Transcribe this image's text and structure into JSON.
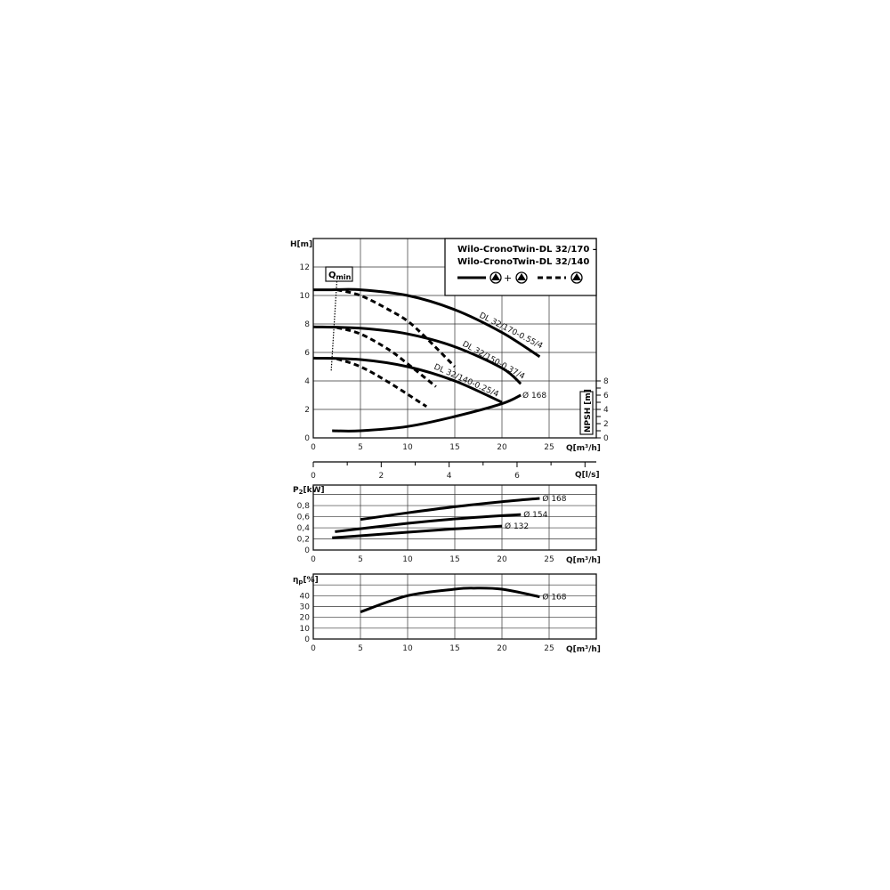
{
  "chart_data": [
    {
      "type": "line",
      "title": "Wilo-CronoTwin-DL 32/170 - Wilo-CronoTwin-DL 32/140",
      "title_lines": [
        "Wilo-CronoTwin-DL 32/170 –",
        "Wilo-CronoTwin-DL 32/140"
      ],
      "legend": {
        "solid": "⊕+⊕",
        "solid_label": "+",
        "placement": "top-right"
      },
      "ylabel": "H[m]",
      "xlabel": "Q[m³/h]",
      "xlim": [
        0,
        30
      ],
      "ylim": [
        0,
        14
      ],
      "xticks": [
        0,
        5,
        10,
        15,
        20,
        25
      ],
      "yticks": [
        0,
        2,
        4,
        6,
        8,
        10,
        12
      ],
      "y2label": "NPSH [m]",
      "y2ticks": [
        0,
        2,
        4,
        6,
        8
      ],
      "y2lim": [
        0,
        8
      ],
      "x2label": "Q[l/s]",
      "x2ticks": [
        0,
        2,
        4,
        6
      ],
      "qmin_label": "Q",
      "qmin_sub": "min",
      "qmin_line": [
        [
          2.5,
          11.0
        ],
        [
          1.9,
          4.7
        ]
      ],
      "series": [
        {
          "name": "DL 32/170-0.55/4",
          "style": "solid",
          "points": [
            [
              0,
              10.4
            ],
            [
              1.8,
              10.4
            ],
            [
              5,
              10.4
            ],
            [
              10,
              10.0
            ],
            [
              15,
              9.0
            ],
            [
              20,
              7.4
            ],
            [
              24,
              5.7
            ]
          ]
        },
        {
          "style": "dashed",
          "points": [
            [
              2.5,
              10.4
            ],
            [
              5,
              10.0
            ],
            [
              8,
              9.0
            ],
            [
              10,
              8.2
            ],
            [
              12,
              7.0
            ],
            [
              15,
              5.0
            ]
          ]
        },
        {
          "name": "DL 32/150-0.37/4",
          "style": "solid",
          "points": [
            [
              0,
              7.8
            ],
            [
              5,
              7.7
            ],
            [
              10,
              7.3
            ],
            [
              15,
              6.4
            ],
            [
              20,
              4.9
            ],
            [
              22,
              3.8
            ]
          ]
        },
        {
          "style": "dashed",
          "points": [
            [
              2.5,
              7.75
            ],
            [
              5,
              7.3
            ],
            [
              8,
              6.2
            ],
            [
              10,
              5.2
            ],
            [
              13,
              3.6
            ]
          ]
        },
        {
          "name": "DL 32/140-0.25/4",
          "style": "solid",
          "points": [
            [
              0,
              5.6
            ],
            [
              5,
              5.5
            ],
            [
              10,
              5.0
            ],
            [
              15,
              4.0
            ],
            [
              20,
              2.5
            ]
          ]
        },
        {
          "style": "dashed",
          "points": [
            [
              2.5,
              5.55
            ],
            [
              5,
              5.0
            ],
            [
              8,
              3.9
            ],
            [
              12,
              2.2
            ]
          ]
        },
        {
          "name": "Ø 168",
          "style": "solid",
          "axis": "NPSH",
          "points": [
            [
              2,
              1.0
            ],
            [
              5,
              1.0
            ],
            [
              10,
              1.6
            ],
            [
              15,
              3.0
            ],
            [
              20,
              4.8
            ],
            [
              22,
              6.0
            ]
          ]
        }
      ]
    },
    {
      "type": "line",
      "ylabel": "P",
      "ylabel_sub": "2",
      "ylabel_unit": "[kW]",
      "xlabel": "Q[m³/h]",
      "xlim": [
        0,
        30
      ],
      "ylim": [
        0,
        1.17
      ],
      "xticks": [
        0,
        5,
        10,
        15,
        20,
        25
      ],
      "yticks": [
        "0",
        "0,2",
        "0,4",
        "0,6",
        "0,8"
      ],
      "series": [
        {
          "name": "Ø 168",
          "points": [
            [
              5,
              0.55
            ],
            [
              10,
              0.67
            ],
            [
              15,
              0.78
            ],
            [
              20,
              0.87
            ],
            [
              24,
              0.93
            ]
          ]
        },
        {
          "name": "Ø 154",
          "points": [
            [
              2.3,
              0.33
            ],
            [
              10,
              0.48
            ],
            [
              15,
              0.56
            ],
            [
              22,
              0.64
            ]
          ]
        },
        {
          "name": "Ø 132",
          "points": [
            [
              2,
              0.22
            ],
            [
              10,
              0.32
            ],
            [
              15,
              0.38
            ],
            [
              20,
              0.43
            ]
          ]
        }
      ]
    },
    {
      "type": "line",
      "ylabel": "η",
      "ylabel_sub": "p",
      "ylabel_unit": "[%]",
      "xlabel": "Q[m³/h]",
      "xlim": [
        0,
        30
      ],
      "ylim": [
        0,
        60
      ],
      "xticks": [
        0,
        5,
        10,
        15,
        20,
        25
      ],
      "yticks": [
        0,
        10,
        20,
        30,
        40
      ],
      "series": [
        {
          "name": "Ø 168",
          "points": [
            [
              5,
              25
            ],
            [
              10,
              40
            ],
            [
              15,
              46
            ],
            [
              17,
              47
            ],
            [
              20,
              46
            ],
            [
              24,
              39
            ]
          ]
        }
      ]
    }
  ]
}
